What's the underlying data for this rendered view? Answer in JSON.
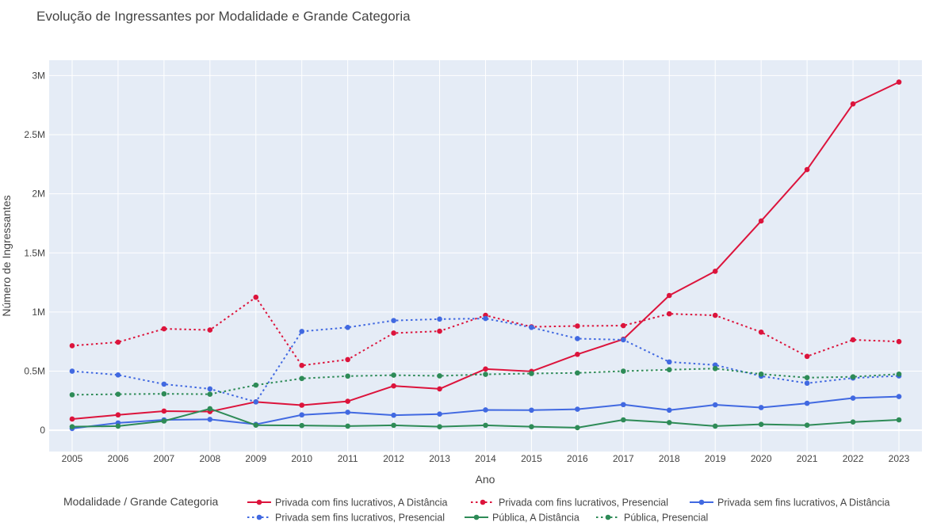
{
  "chart_data": {
    "type": "line",
    "title": "Evolução de Ingressantes por Modalidade e Grande Categoria",
    "xlabel": "Ano",
    "ylabel": "Número de Ingressantes",
    "legend_title": "Modalidade / Grande Categoria",
    "legend_position": "bottom",
    "grid": true,
    "plot_bgcolor": "#e5ecf6",
    "x": [
      "2005",
      "2006",
      "2007",
      "2008",
      "2009",
      "2010",
      "2011",
      "2012",
      "2013",
      "2014",
      "2015",
      "2016",
      "2017",
      "2018",
      "2019",
      "2020",
      "2021",
      "2022",
      "2023"
    ],
    "ylim": [
      -180000,
      3130000
    ],
    "y_ticks": [
      {
        "value": 0,
        "label": "0"
      },
      {
        "value": 500000,
        "label": "0.5M"
      },
      {
        "value": 1000000,
        "label": "1M"
      },
      {
        "value": 1500000,
        "label": "1.5M"
      },
      {
        "value": 2000000,
        "label": "2M"
      },
      {
        "value": 2500000,
        "label": "2.5M"
      },
      {
        "value": 3000000,
        "label": "3M"
      }
    ],
    "series": [
      {
        "name": "Privada com fins lucrativos, A Distância",
        "color": "#dc143c",
        "dash": "solid",
        "values": [
          95000,
          130000,
          162000,
          158000,
          240000,
          212000,
          245000,
          375000,
          350000,
          518000,
          498000,
          642000,
          770000,
          1140000,
          1345000,
          1770000,
          2205000,
          2760000,
          2945000
        ]
      },
      {
        "name": "Privada com fins lucrativos, Presencial",
        "color": "#dc143c",
        "dash": "dot",
        "values": [
          715000,
          745000,
          858000,
          848000,
          1125000,
          548000,
          598000,
          822000,
          838000,
          972000,
          875000,
          882000,
          885000,
          985000,
          972000,
          830000,
          625000,
          765000,
          750000
        ]
      },
      {
        "name": "Privada sem fins lucrativos, A Distância",
        "color": "#4169e1",
        "dash": "solid",
        "values": [
          15000,
          62000,
          88000,
          92000,
          50000,
          130000,
          152000,
          127000,
          137000,
          172000,
          170000,
          178000,
          217000,
          170000,
          215000,
          192000,
          228000,
          272000,
          285000
        ]
      },
      {
        "name": "Privada sem fins lucrativos, Presencial",
        "color": "#4169e1",
        "dash": "dot",
        "values": [
          500000,
          468000,
          390000,
          350000,
          240000,
          836000,
          870000,
          928000,
          940000,
          945000,
          870000,
          775000,
          765000,
          578000,
          552000,
          458000,
          398000,
          442000,
          460000
        ]
      },
      {
        "name": "Pública, A Distância",
        "color": "#2e8b57",
        "dash": "solid",
        "values": [
          30000,
          35000,
          78000,
          182000,
          43000,
          40000,
          35000,
          42000,
          30000,
          42000,
          30000,
          22000,
          88000,
          65000,
          35000,
          50000,
          43000,
          70000,
          88000
        ]
      },
      {
        "name": "Pública, Presencial",
        "color": "#2e8b57",
        "dash": "dot",
        "values": [
          300000,
          305000,
          308000,
          305000,
          382000,
          438000,
          458000,
          466000,
          460000,
          473000,
          480000,
          485000,
          500000,
          512000,
          522000,
          475000,
          445000,
          452000,
          475000
        ]
      }
    ]
  }
}
